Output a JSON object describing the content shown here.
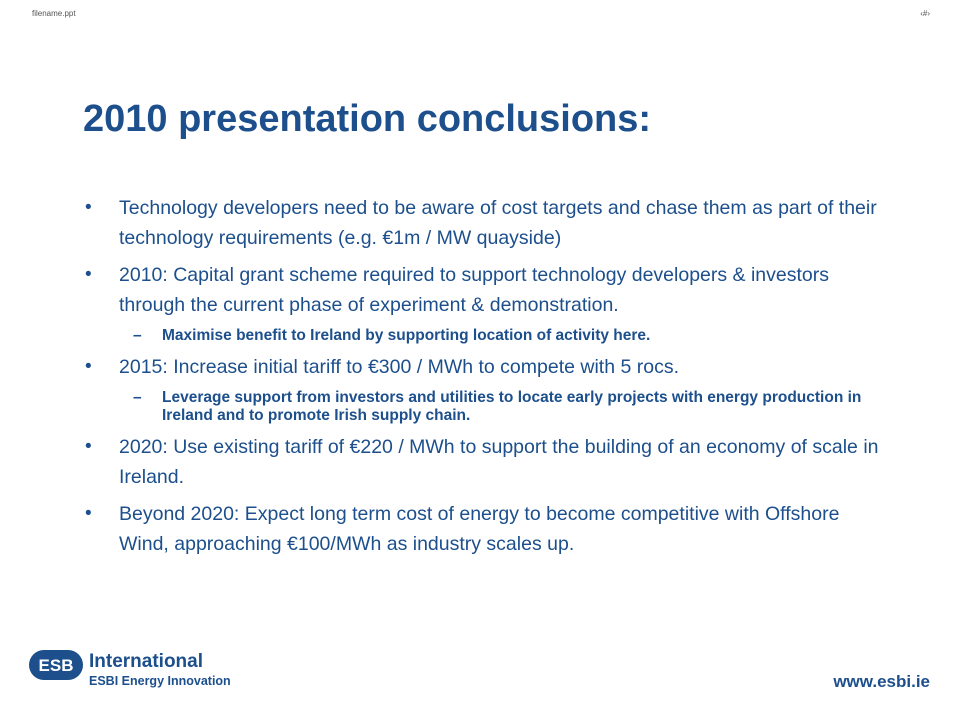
{
  "header": {
    "filename": "filename.ppt",
    "page_number": "‹#›"
  },
  "slide": {
    "title": "2010 presentation conclusions:",
    "bullets": [
      {
        "text": "Technology developers need to be aware of cost targets and chase them as part of their technology requirements (e.g. €1m / MW quayside)"
      },
      {
        "text": "2010: Capital grant scheme required to support technology developers & investors through the current phase of experiment & demonstration."
      },
      {
        "text": "Maximise benefit to Ireland by supporting location of activity here."
      },
      {
        "text": "2015: Increase initial tariff to €300 / MWh to compete with 5 rocs."
      },
      {
        "text": "Leverage support from investors and utilities to locate early projects with energy production in Ireland and to promote Irish supply chain."
      },
      {
        "text": "2020:  Use existing tariff of €220 / MWh to support the building of an economy of scale in Ireland."
      },
      {
        "text": "Beyond 2020: Expect long term cost of energy to become competitive with Offshore Wind, approaching €100/MWh as industry scales up."
      }
    ],
    "bullet_glyph": "•",
    "dash_glyph": "–"
  },
  "footer": {
    "logo_mark": "ESB",
    "logo_line1": "International",
    "logo_line2": "ESBI Energy Innovation",
    "website": "www.esbi.ie"
  },
  "colors": {
    "brand_blue": "#1c4f8c"
  }
}
